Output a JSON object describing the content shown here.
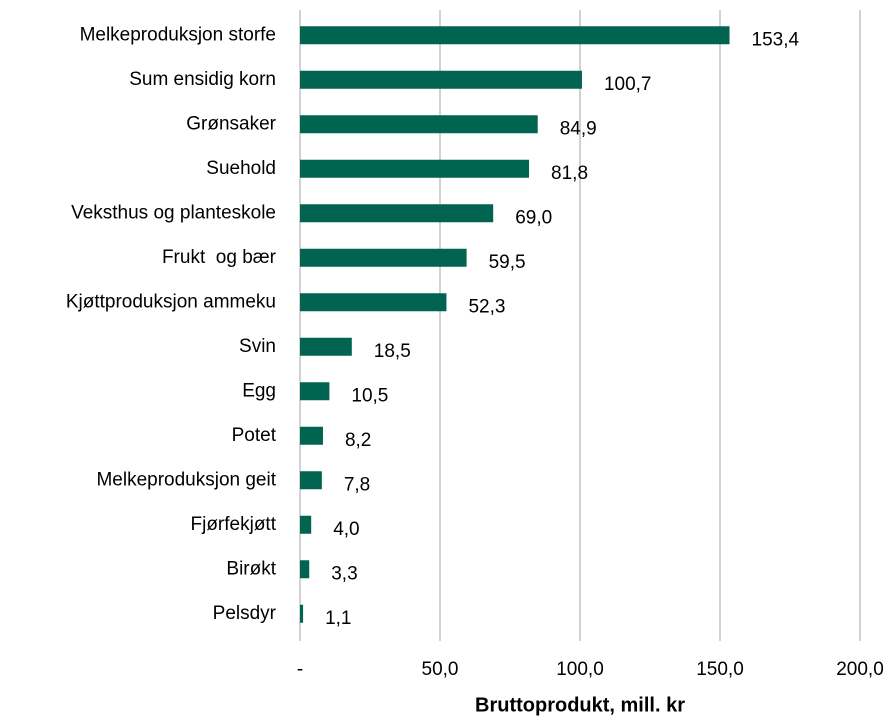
{
  "chart_data": {
    "type": "barh",
    "categories": [
      "Melkeproduksjon storfe",
      "Sum ensidig korn",
      "Grønsaker",
      "Suehold",
      "Veksthus og planteskole",
      "Frukt  og bær",
      "Kjøttproduksjon ammeku",
      "Svin",
      "Egg",
      "Potet",
      "Melkeproduksjon geit",
      "Fjørfekjøtt",
      "Birøkt",
      "Pelsdyr"
    ],
    "values": [
      153.4,
      100.7,
      84.9,
      81.8,
      69.0,
      59.5,
      52.3,
      18.5,
      10.5,
      8.2,
      7.8,
      4.0,
      3.3,
      1.1
    ],
    "value_labels": [
      "153,4",
      "100,7",
      "84,9",
      "81,8",
      "69,0",
      "59,5",
      "52,3",
      "18,5",
      "10,5",
      "8,2",
      "7,8",
      "4,0",
      "3,3",
      "1,1"
    ],
    "color": "#006450",
    "xlabel": "Bruttoprodukt, mill. kr",
    "xlim": [
      0,
      200
    ],
    "xticks": [
      {
        "value": 0,
        "label": "-"
      },
      {
        "value": 50,
        "label": "50,0"
      },
      {
        "value": 100,
        "label": "100,0"
      },
      {
        "value": 150,
        "label": "150,0"
      },
      {
        "value": 200,
        "label": "200,0"
      }
    ],
    "grid": true
  }
}
